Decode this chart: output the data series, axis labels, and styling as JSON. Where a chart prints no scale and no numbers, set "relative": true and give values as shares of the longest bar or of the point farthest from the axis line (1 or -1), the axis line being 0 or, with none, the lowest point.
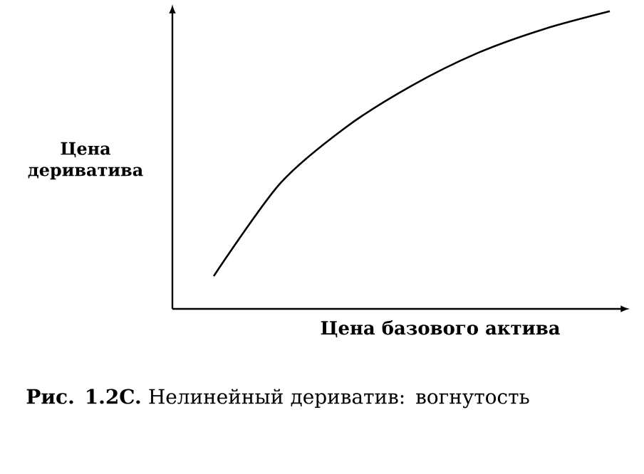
{
  "chart_data": {
    "type": "line",
    "relative": true,
    "xlabel": "Цена базового актива",
    "ylabel": "Цена дериватива",
    "categories": [
      null,
      null,
      null,
      null,
      null,
      null,
      null
    ],
    "values": [
      0.11,
      0.42,
      0.61,
      0.75,
      0.86,
      0.94,
      1.0
    ],
    "color": "#000000",
    "annotations": [
      "**Рис. 1.2C.** Нелинейный дериватив: вогнутость"
    ]
  }
}
